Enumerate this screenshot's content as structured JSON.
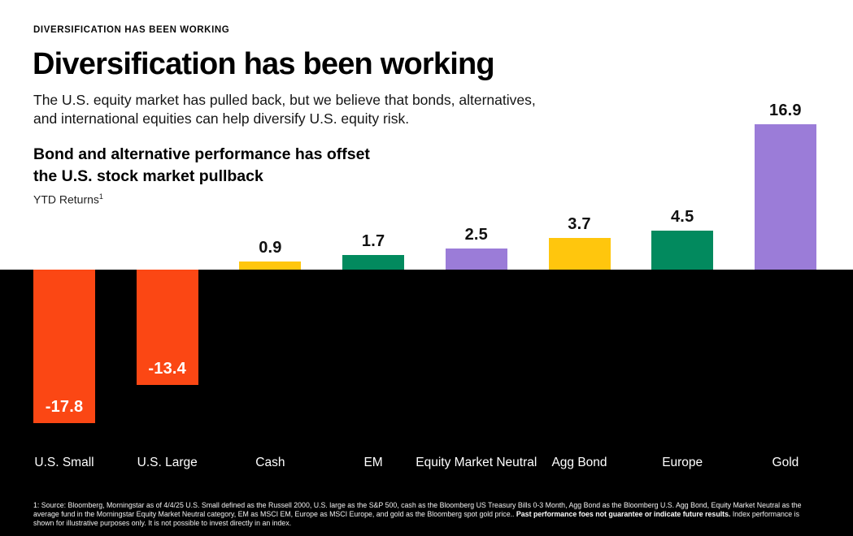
{
  "header": {
    "eyebrow": "DIVERSIFICATION HAS BEEN WORKING",
    "title": "Diversification has been working",
    "subtitle": "The U.S. equity market has pulled back, but we believe that bonds, alternatives,\nand international equities can help diversify U.S. equity risk."
  },
  "chart": {
    "title": "Bond and alternative performance has offset\nthe U.S. stock market pullback",
    "units_label": "YTD Returns",
    "units_sup": "1"
  },
  "chart_data": {
    "type": "bar",
    "title": "Bond and alternative performance has offset the U.S. stock market pullback",
    "ylabel": "YTD Returns (%)",
    "xlabel": "",
    "categories": [
      "U.S. Small",
      "U.S. Large",
      "Cash",
      "EM",
      "Equity Market Neutral",
      "Agg Bond",
      "Europe",
      "Gold"
    ],
    "values": [
      -17.8,
      -13.4,
      0.9,
      1.7,
      2.5,
      3.7,
      4.5,
      16.9
    ],
    "value_labels": [
      "-17.8",
      "-13.4",
      "0.9",
      "1.7",
      "2.5",
      "3.7",
      "4.5",
      "16.9"
    ],
    "colors": [
      "#FB4714",
      "#FB4714",
      "#FFC60D",
      "#028A5E",
      "#9B7CD8",
      "#FFC60D",
      "#028A5E",
      "#9B7CD8"
    ],
    "ylim": [
      -20,
      18
    ],
    "grid": false,
    "legend": "none",
    "layout_note": "white background above zero line, black background below zero line; negative value labels in white inside bars, positive value labels in black above bars",
    "background_positive": "#FFFFFF",
    "background_negative": "#000000"
  },
  "footnote": {
    "part1": "1: Source: Bloomberg, Morningstar as of 4/4/25 U.S. Small defined as the Russell 2000, U.S. large as the S&P 500, cash as the Bloomberg US Treasury Bills 0-3 Month, Agg Bond as the Bloomberg  U.S. Agg Bond, Equity Market Neutral as the average fund in the Morningstar Equity Market Neutral category, EM as MSCI EM, Europe as MSCI Europe, and gold as the Bloomberg spot gold price.. ",
    "bold": "Past performance foes not guarantee or indicate future results.",
    "part2": " Index performance is shown for illustrative purposes only. It is not possible to invest directly in an index."
  }
}
